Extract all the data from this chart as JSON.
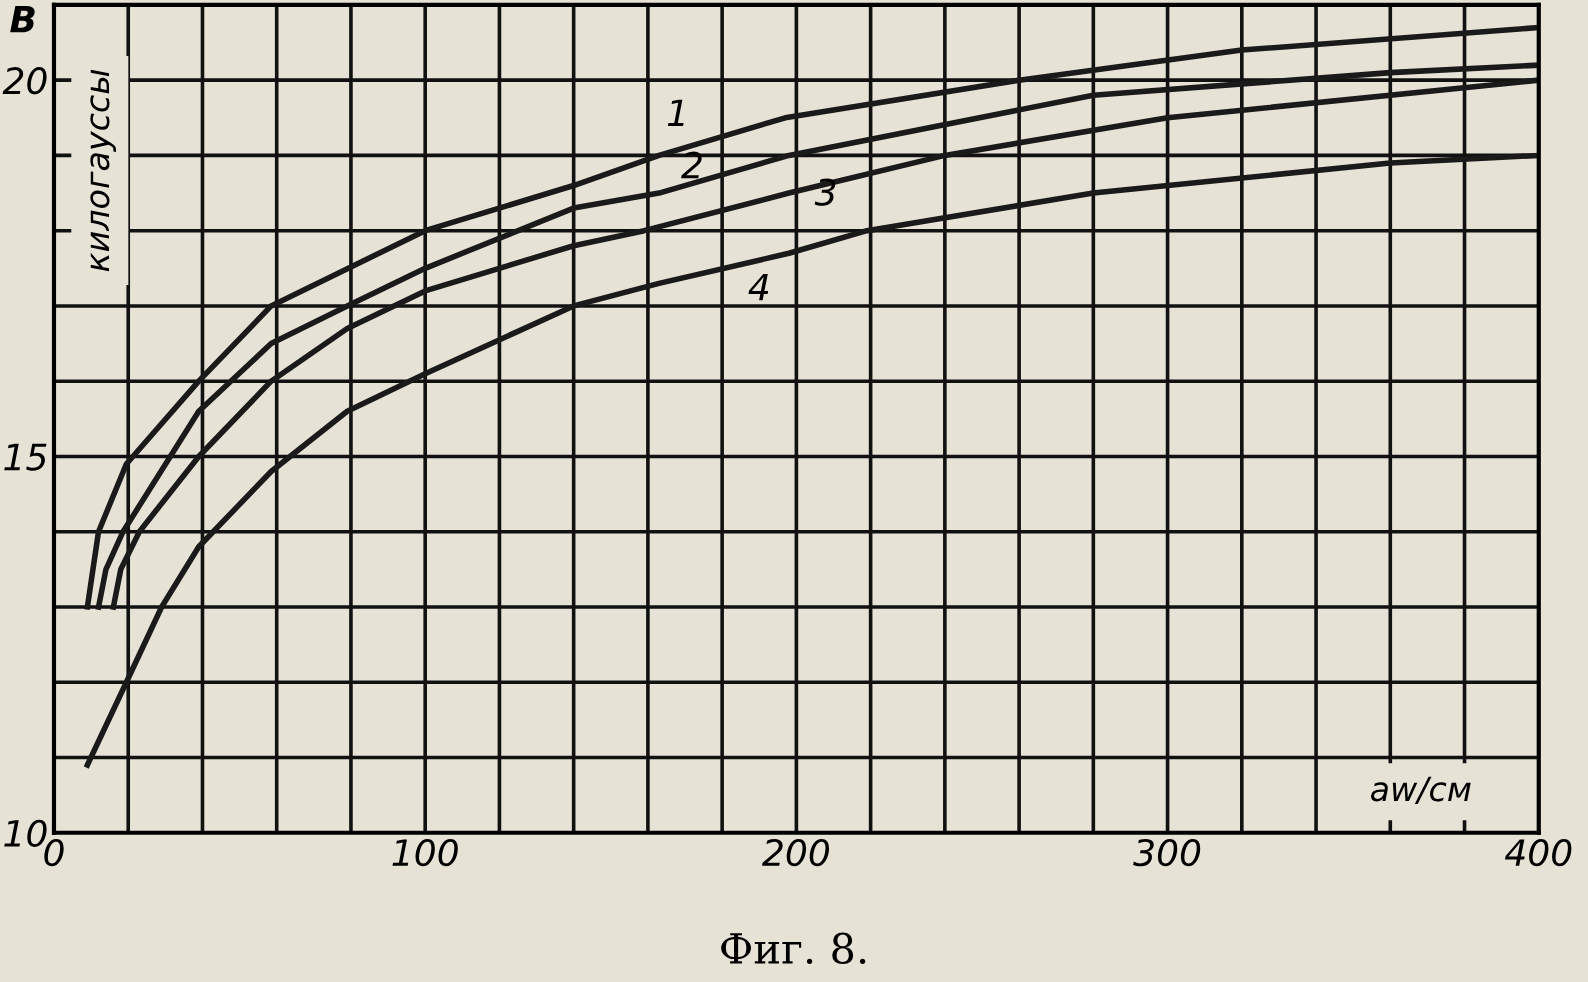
{
  "chart_data": {
    "type": "line",
    "title": "Фиг. 8.",
    "xlabel": "aw/см",
    "ylabel": "B",
    "xlim": [
      0,
      400
    ],
    "ylim": [
      10,
      21
    ],
    "xticks": [
      0,
      {
        "value": 20,
        "label": null
      },
      {
        "value": 40,
        "label": null
      },
      {
        "value": 60,
        "label": null
      },
      {
        "value": 80,
        "label": null
      },
      100,
      {
        "value": 120,
        "label": null
      },
      {
        "value": 140,
        "label": null
      },
      {
        "value": 160,
        "label": null
      },
      {
        "value": 180,
        "label": null
      },
      200,
      {
        "value": 220,
        "label": null
      },
      {
        "value": 240,
        "label": null
      },
      {
        "value": 260,
        "label": null
      },
      {
        "value": 280,
        "label": null
      },
      300,
      {
        "value": 320,
        "label": null
      },
      {
        "value": 340,
        "label": null
      },
      {
        "value": 360,
        "label": null
      },
      {
        "value": 380,
        "label": null
      },
      400
    ],
    "yticks": [
      10,
      {
        "value": 11,
        "label": null
      },
      {
        "value": 12,
        "label": null
      },
      {
        "value": 13,
        "label": null
      },
      {
        "value": 14,
        "label": null
      },
      15,
      {
        "value": 16,
        "label": null
      },
      {
        "value": 17,
        "label": null
      },
      {
        "value": 18,
        "label": null
      },
      {
        "value": 19,
        "label": null
      },
      20,
      {
        "value": 21,
        "label": null
      }
    ],
    "grid": true,
    "marker": "none",
    "line_style": "solid",
    "series": [
      {
        "name": "1",
        "color": "#1a1a1a",
        "x": [
          9,
          12,
          19.5,
          39,
          58.5,
          100,
          140,
          163,
          197,
          260,
          320,
          400
        ],
        "values": [
          13.0,
          14.0,
          14.9,
          16.0,
          17.0,
          18.0,
          18.6,
          19.0,
          19.5,
          20.0,
          20.4,
          20.7
        ]
      },
      {
        "name": "2",
        "color": "#1a1a1a",
        "x": [
          12,
          14,
          18.6,
          39,
          58.5,
          79,
          100,
          140,
          163,
          198,
          280,
          360,
          400
        ],
        "values": [
          13.0,
          13.5,
          14.0,
          15.6,
          16.5,
          17.0,
          17.5,
          18.3,
          18.5,
          19.0,
          19.8,
          20.1,
          20.2
        ]
      },
      {
        "name": "3",
        "color": "#1a1a1a",
        "x": [
          16,
          18,
          23,
          39,
          58.5,
          79,
          100,
          140,
          159,
          198,
          240,
          300,
          400
        ],
        "values": [
          13.0,
          13.5,
          14.0,
          15.0,
          16.0,
          16.7,
          17.2,
          17.8,
          18.0,
          18.5,
          19.0,
          19.5,
          20.0
        ]
      },
      {
        "name": "4",
        "color": "#1a1a1a",
        "x": [
          9,
          19.5,
          29,
          39,
          58.5,
          79,
          100,
          140,
          163,
          198,
          219,
          280,
          360,
          400
        ],
        "values": [
          10.9,
          12.0,
          13.0,
          13.8,
          14.8,
          15.6,
          16.1,
          17.0,
          17.3,
          17.7,
          18.0,
          18.5,
          18.9,
          19.0
        ]
      }
    ],
    "annotations": [
      "килогауссы"
    ]
  }
}
